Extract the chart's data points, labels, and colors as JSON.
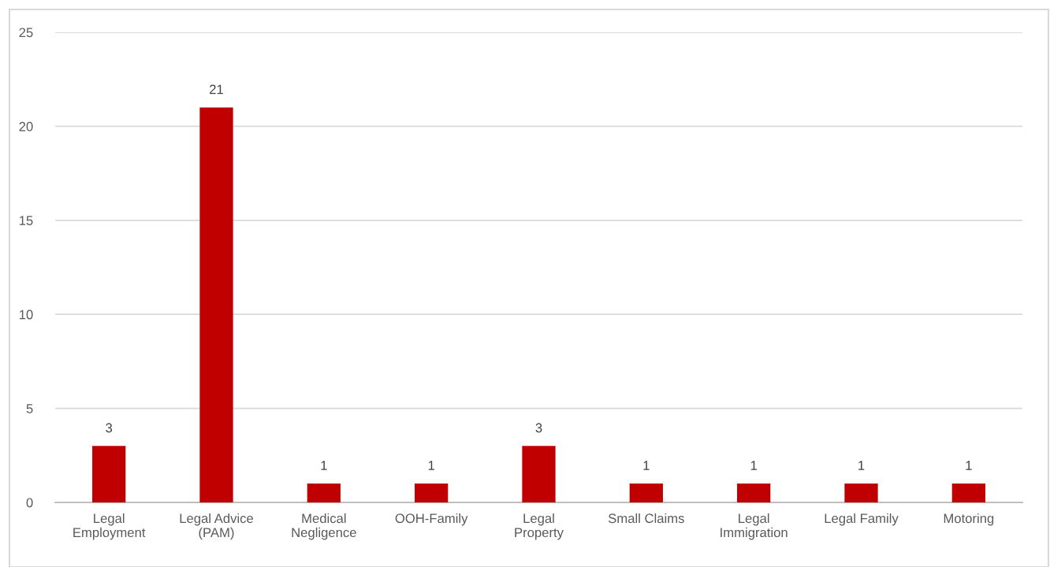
{
  "chart_data": {
    "type": "bar",
    "categories": [
      "Legal Employment",
      "Legal Advice (PAM)",
      "Medical Negligence",
      "OOH-Family",
      "Legal Property",
      "Small Claims",
      "Legal Immigration",
      "Legal Family",
      "Motoring"
    ],
    "values": [
      3,
      21,
      1,
      1,
      3,
      1,
      1,
      1,
      1
    ],
    "color": "#c00000",
    "ylim": [
      0,
      25
    ],
    "yticks": [
      0,
      5,
      10,
      15,
      20,
      25
    ],
    "grid": "y",
    "data_labels": true
  }
}
